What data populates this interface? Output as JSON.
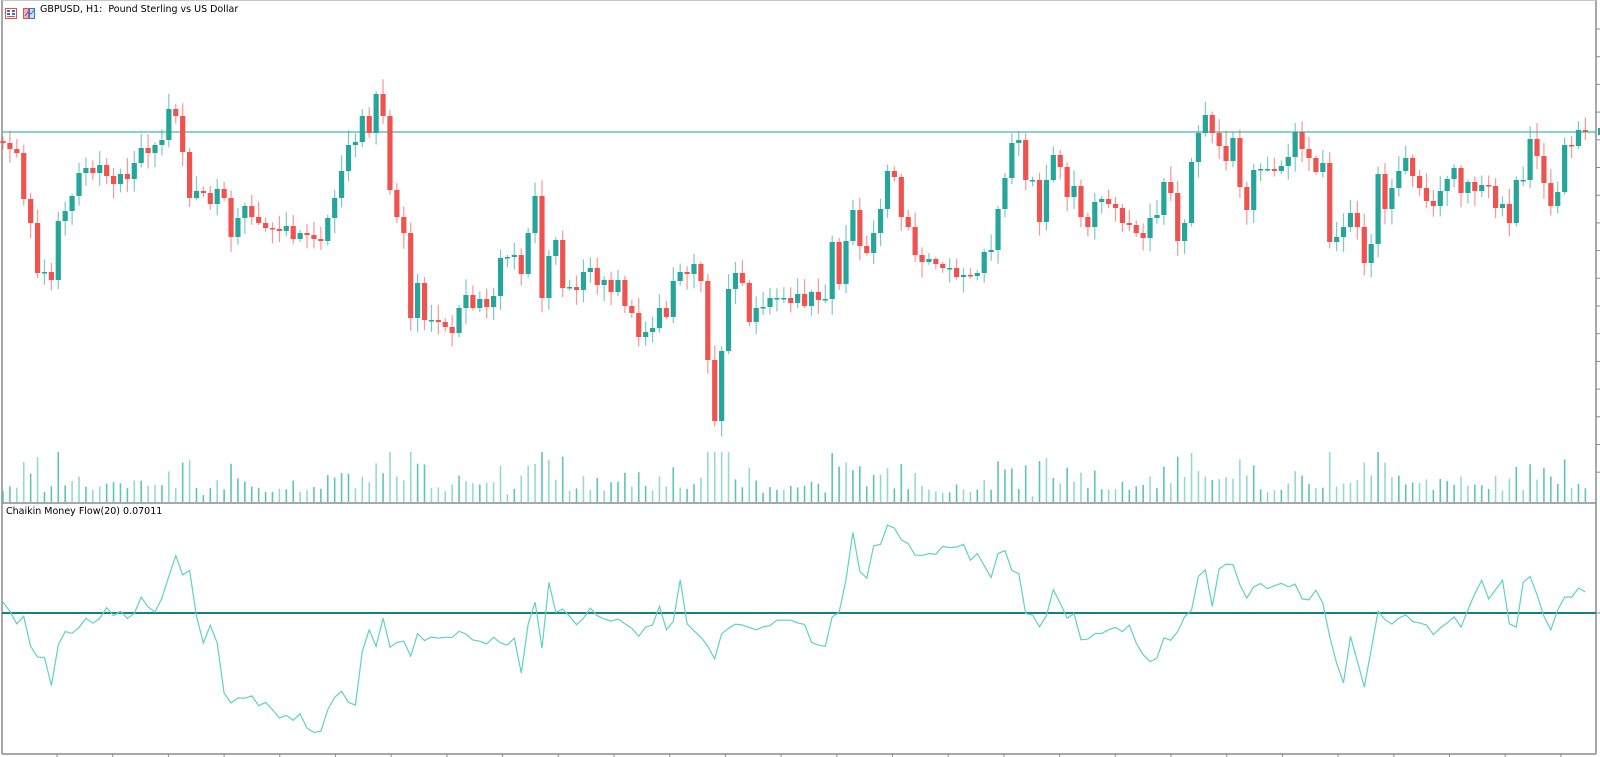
{
  "window": {
    "title": "GBPUSD, H1:  Pound Sterling vs US Dollar",
    "icons": [
      "chart-window-icon",
      "chart-properties-icon"
    ]
  },
  "colors": {
    "bull": "#26a69a",
    "bear": "#ef5350",
    "level_line": "#3dbcae",
    "volume": "#5ec4b8",
    "cmf_line": "#5fd1c7",
    "zero_line": "#17827d",
    "frame": "#8c8c8c"
  },
  "chart_data": [
    {
      "type": "candlestick",
      "symbol": "GBPUSD",
      "timeframe": "H1",
      "title": "GBPUSD, H1:  Pound Sterling vs US Dollar",
      "volume_histogram": true,
      "horizontal_line": 368,
      "close": [
        357,
        351,
        347,
        301,
        277,
        227,
        228,
        220,
        279,
        289,
        304,
        327,
        332,
        327,
        335,
        324,
        316,
        326,
        321,
        337,
        352,
        347,
        355,
        360,
        391,
        384,
        348,
        302,
        309,
        307,
        296,
        311,
        302,
        263,
        282,
        294,
        283,
        277,
        272,
        271,
        269,
        274,
        261,
        267,
        265,
        261,
        259,
        282,
        302,
        329,
        355,
        358,
        384,
        367,
        406,
        384,
        310,
        283,
        267,
        182,
        217,
        180,
        180,
        178,
        173,
        167,
        192,
        205,
        192,
        201,
        193,
        204,
        242,
        243,
        245,
        226,
        267,
        304,
        202,
        244,
        260,
        212,
        213,
        210,
        228,
        232,
        215,
        220,
        208,
        220,
        194,
        187,
        163,
        168,
        172,
        192,
        183,
        219,
        228,
        226,
        236,
        219,
        140,
        79,
        149,
        211,
        227,
        217,
        178,
        192,
        193,
        202,
        202,
        202,
        197,
        206,
        194,
        208,
        200,
        201,
        258,
        216,
        259,
        290,
        254,
        247,
        267,
        291,
        329,
        323,
        283,
        273,
        245,
        238,
        241,
        236,
        232,
        232,
        223,
        225,
        224,
        227,
        248,
        250,
        291,
        322,
        357,
        360,
        320,
        320,
        278,
        320,
        345,
        333,
        303,
        314,
        283,
        273,
        298,
        301,
        296,
        292,
        277,
        275,
        267,
        262,
        282,
        285,
        318,
        307,
        259,
        277,
        338,
        367,
        385,
        367,
        354,
        339,
        362,
        313,
        290,
        330,
        331,
        331,
        329,
        334,
        343,
        368,
        351,
        342,
        328,
        337,
        258,
        263,
        273,
        287,
        273,
        237,
        256,
        326,
        291,
        312,
        329,
        342,
        324,
        312,
        299,
        294,
        309,
        321,
        332,
        307,
        318,
        309,
        315,
        314,
        292,
        296,
        277,
        320,
        320,
        361,
        344,
        317,
        294,
        308,
        355,
        354,
        370,
        369
      ]
    },
    {
      "type": "line",
      "title": "Chaikin Money Flow(20) 0.07011",
      "name": "Chaikin Money Flow(20)",
      "period": 20,
      "last_value": 0.07011,
      "zero_line": 0,
      "values": [
        0.036,
        0.006,
        -0.036,
        -0.011,
        -0.111,
        -0.147,
        -0.148,
        -0.242,
        -0.106,
        -0.062,
        -0.068,
        -0.048,
        -0.018,
        -0.034,
        -0.018,
        0.018,
        -0.009,
        0.006,
        -0.018,
        -0.001,
        0.053,
        0.02,
        0.003,
        0.05,
        0.122,
        0.191,
        0.127,
        0.142,
        -0.011,
        -0.1,
        -0.041,
        -0.1,
        -0.267,
        -0.3,
        -0.283,
        -0.284,
        -0.276,
        -0.309,
        -0.298,
        -0.322,
        -0.35,
        -0.341,
        -0.358,
        -0.336,
        -0.384,
        -0.398,
        -0.394,
        -0.322,
        -0.281,
        -0.261,
        -0.298,
        -0.307,
        -0.128,
        -0.056,
        -0.111,
        -0.017,
        -0.114,
        -0.098,
        -0.094,
        -0.144,
        -0.069,
        -0.092,
        -0.08,
        -0.084,
        -0.081,
        -0.081,
        -0.061,
        -0.07,
        -0.09,
        -0.094,
        -0.103,
        -0.081,
        -0.1,
        -0.107,
        -0.084,
        -0.2,
        -0.036,
        0.036,
        -0.117,
        0.102,
        0.002,
        0.013,
        -0.011,
        -0.039,
        -0.018,
        0.016,
        -0.009,
        -0.02,
        -0.027,
        -0.02,
        -0.036,
        -0.051,
        -0.078,
        -0.047,
        -0.04,
        0.022,
        -0.056,
        -0.028,
        0.111,
        -0.036,
        -0.06,
        -0.08,
        -0.111,
        -0.153,
        -0.069,
        -0.051,
        -0.037,
        -0.04,
        -0.048,
        -0.056,
        -0.046,
        -0.042,
        -0.024,
        -0.024,
        -0.024,
        -0.033,
        -0.038,
        -0.098,
        -0.107,
        -0.111,
        -0.013,
        0.002,
        0.111,
        0.269,
        0.139,
        0.116,
        0.224,
        0.229,
        0.293,
        0.283,
        0.244,
        0.231,
        0.193,
        0.192,
        0.198,
        0.196,
        0.222,
        0.218,
        0.22,
        0.229,
        0.176,
        0.198,
        0.158,
        0.118,
        0.198,
        0.208,
        0.142,
        0.131,
        -0.002,
        -0.007,
        -0.046,
        -0.009,
        0.078,
        0.033,
        -0.017,
        -0.002,
        -0.089,
        -0.087,
        -0.069,
        -0.068,
        -0.056,
        -0.048,
        -0.062,
        -0.04,
        -0.1,
        -0.139,
        -0.162,
        -0.15,
        -0.083,
        -0.091,
        -0.062,
        -0.013,
        0.009,
        0.122,
        0.144,
        0.022,
        0.147,
        0.163,
        0.161,
        0.094,
        0.05,
        0.087,
        0.098,
        0.081,
        0.091,
        0.099,
        0.087,
        0.096,
        0.047,
        0.044,
        0.076,
        0.033,
        -0.078,
        -0.167,
        -0.233,
        -0.078,
        -0.161,
        -0.247,
        -0.122,
        0.006,
        -0.022,
        -0.037,
        -0.017,
        -0.006,
        -0.028,
        -0.033,
        -0.04,
        -0.072,
        -0.05,
        -0.033,
        -0.013,
        -0.047,
        0.011,
        0.064,
        0.109,
        0.047,
        0.078,
        0.109,
        -0.036,
        -0.047,
        0.102,
        0.122,
        0.061,
        -0.011,
        -0.056,
        0.011,
        0.053,
        0.053,
        0.083,
        0.07011
      ]
    }
  ]
}
